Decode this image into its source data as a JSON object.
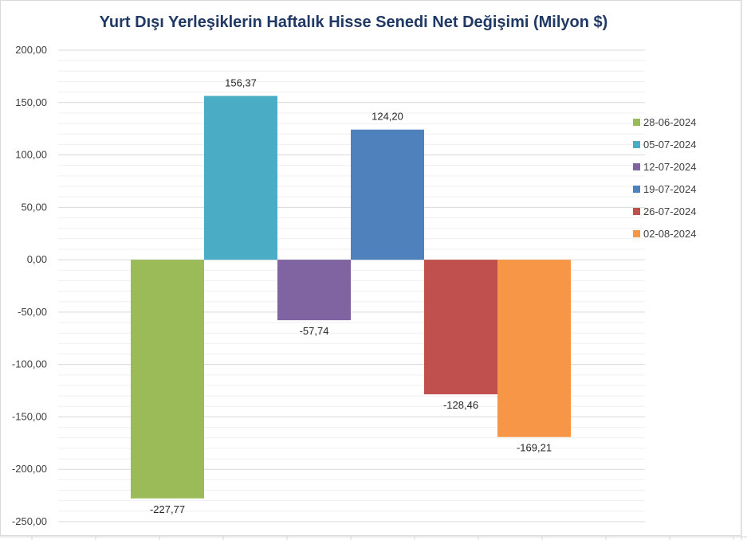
{
  "chart_data": {
    "type": "bar",
    "title": "Yurt Dışı Yerleşiklerin Haftalık Hisse Senedi Net Değişimi (Milyon $)",
    "xlabel": "",
    "ylabel": "",
    "ylim": [
      -250,
      200
    ],
    "yticks": [
      200,
      150,
      100,
      50,
      0,
      -50,
      -100,
      -150,
      -200,
      -250
    ],
    "ytick_labels": [
      "200,00",
      "150,00",
      "100,00",
      "50,00",
      "0,00",
      "-50,00",
      "-100,00",
      "-150,00",
      "-200,00",
      "-250,00"
    ],
    "grid": true,
    "legend_position": "right",
    "series": [
      {
        "name": "28-06-2024",
        "value": -227.77,
        "label": "-227,77",
        "color": "#9bbb59"
      },
      {
        "name": "05-07-2024",
        "value": 156.37,
        "label": "156,37",
        "color": "#4bacc6"
      },
      {
        "name": "12-07-2024",
        "value": -57.74,
        "label": "-57,74",
        "color": "#8064a2"
      },
      {
        "name": "19-07-2024",
        "value": 124.2,
        "label": "124,20",
        "color": "#4f81bd"
      },
      {
        "name": "26-07-2024",
        "value": -128.46,
        "label": "-128,46",
        "color": "#c0504d"
      },
      {
        "name": "02-08-2024",
        "value": -169.21,
        "label": "-169,21",
        "color": "#f79646"
      }
    ]
  }
}
